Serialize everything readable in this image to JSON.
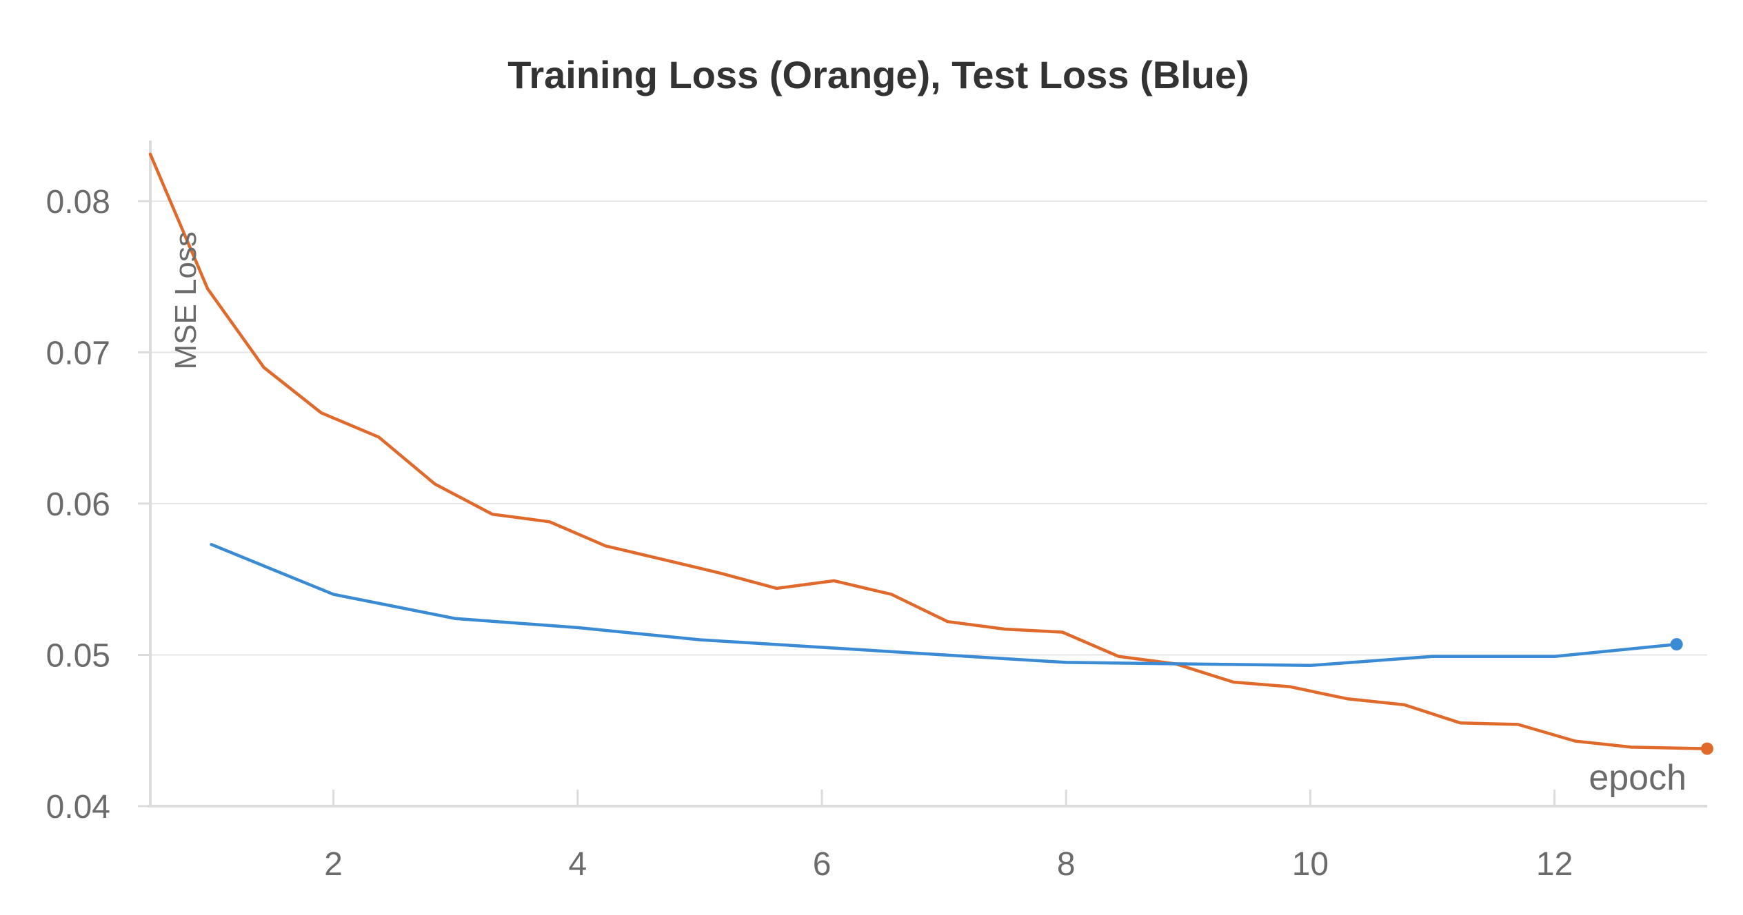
{
  "chart_data": {
    "type": "line",
    "title": "Training Loss (Orange), Test Loss (Blue)",
    "xlabel": "epoch",
    "ylabel": "MSE Loss",
    "xlim": [
      0.5,
      13.25
    ],
    "ylim": [
      0.04,
      0.084
    ],
    "x_ticks": [
      2,
      4,
      6,
      8,
      10,
      12
    ],
    "y_ticks": [
      0.04,
      0.05,
      0.06,
      0.07,
      0.08
    ],
    "x_tick_labels": [
      "2",
      "4",
      "6",
      "8",
      "10",
      "12"
    ],
    "y_tick_labels": [
      "0.04",
      "0.05",
      "0.06",
      "0.07",
      "0.08"
    ],
    "grid": true,
    "series": [
      {
        "color": "#E06A2C",
        "x": [
          0.5,
          0.97,
          1.43,
          1.9,
          2.37,
          2.83,
          3.3,
          3.77,
          4.23,
          4.7,
          5.17,
          5.63,
          6.1,
          6.57,
          7.03,
          7.5,
          7.97,
          8.43,
          8.9,
          9.37,
          9.83,
          10.3,
          10.77,
          11.23,
          11.7,
          12.17,
          12.63,
          13.25
        ],
        "y": [
          0.0831,
          0.0742,
          0.069,
          0.066,
          0.0644,
          0.0613,
          0.0593,
          0.0588,
          0.0572,
          0.0563,
          0.0554,
          0.0544,
          0.0549,
          0.054,
          0.0522,
          0.0517,
          0.0515,
          0.0499,
          0.0494,
          0.0482,
          0.0479,
          0.0471,
          0.0467,
          0.0455,
          0.0454,
          0.0443,
          0.0439,
          0.0438
        ]
      },
      {
        "color": "#3A8BD4",
        "x": [
          1,
          2,
          3,
          4,
          5,
          6,
          7,
          8,
          9,
          10,
          11,
          12,
          13
        ],
        "y": [
          0.0573,
          0.054,
          0.0524,
          0.0518,
          0.051,
          0.0505,
          0.05,
          0.0495,
          0.0494,
          0.0493,
          0.0499,
          0.0499,
          0.0507
        ]
      }
    ]
  }
}
